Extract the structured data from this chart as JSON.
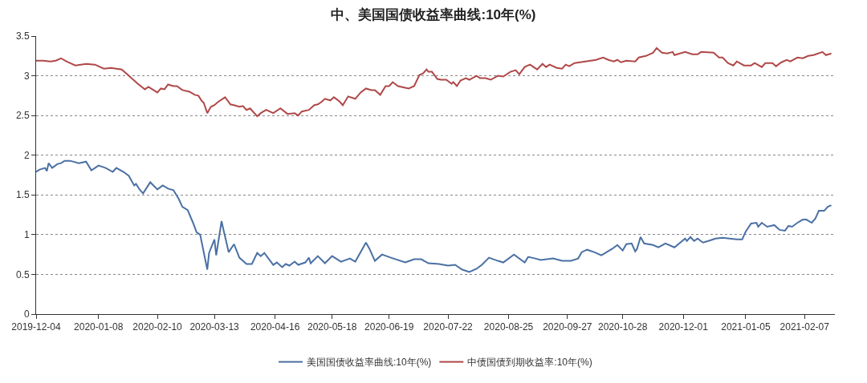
{
  "chart_data": {
    "type": "line",
    "title": "中、美国国债收益率曲线:10年(%)",
    "xlim": [
      "2019-12-04",
      "2021-02-24"
    ],
    "xticks": [
      "2019-12-04",
      "2020-01-08",
      "2020-02-10",
      "2020-03-13",
      "2020-04-16",
      "2020-05-18",
      "2020-06-19",
      "2020-07-22",
      "2020-08-25",
      "2020-09-27",
      "2020-10-28",
      "2020-12-01",
      "2021-01-05",
      "2021-02-07"
    ],
    "ylim": [
      0,
      3.5
    ],
    "yticks": [
      0,
      0.5,
      1,
      1.5,
      2,
      2.5,
      3,
      3.5
    ],
    "grid": "y",
    "legend": "bottom",
    "marker": "none",
    "line_style": "solid",
    "series": [
      {
        "name": "美国国债收益率曲线:10年(%)",
        "color": "#4a70a4",
        "x": [
          "2019-12-04",
          "2019-12-06",
          "2019-12-09",
          "2019-12-10",
          "2019-12-11",
          "2019-12-13",
          "2019-12-16",
          "2019-12-18",
          "2019-12-20",
          "2019-12-23",
          "2019-12-28",
          "2020-01-01",
          "2020-01-04",
          "2020-01-08",
          "2020-01-12",
          "2020-01-16",
          "2020-01-18",
          "2020-01-22",
          "2020-01-25",
          "2020-01-28",
          "2020-01-29",
          "2020-01-31",
          "2020-02-02",
          "2020-02-06",
          "2020-02-10",
          "2020-02-13",
          "2020-02-16",
          "2020-02-19",
          "2020-02-22",
          "2020-02-24",
          "2020-02-27",
          "2020-03-01",
          "2020-03-03",
          "2020-03-05",
          "2020-03-09",
          "2020-03-10",
          "2020-03-13",
          "2020-03-14",
          "2020-03-17",
          "2020-03-18",
          "2020-03-21",
          "2020-03-24",
          "2020-03-27",
          "2020-03-31",
          "2020-04-03",
          "2020-04-06",
          "2020-04-08",
          "2020-04-10",
          "2020-04-15",
          "2020-04-17",
          "2020-04-20",
          "2020-04-22",
          "2020-04-24",
          "2020-04-27",
          "2020-04-29",
          "2020-05-03",
          "2020-05-05",
          "2020-05-06",
          "2020-05-10",
          "2020-05-14",
          "2020-05-18",
          "2020-05-23",
          "2020-05-28",
          "2020-05-31",
          "2020-06-06",
          "2020-06-08",
          "2020-06-11",
          "2020-06-15",
          "2020-06-20",
          "2020-06-28",
          "2020-07-03",
          "2020-07-07",
          "2020-07-11",
          "2020-07-17",
          "2020-07-22",
          "2020-07-26",
          "2020-07-30",
          "2020-08-03",
          "2020-08-07",
          "2020-08-10",
          "2020-08-14",
          "2020-08-19",
          "2020-08-22",
          "2020-08-28",
          "2020-09-03",
          "2020-09-05",
          "2020-09-09",
          "2020-09-12",
          "2020-09-19",
          "2020-09-24",
          "2020-09-29",
          "2020-10-03",
          "2020-10-05",
          "2020-10-08",
          "2020-10-12",
          "2020-10-16",
          "2020-10-22",
          "2020-10-25",
          "2020-10-28",
          "2020-10-30",
          "2020-11-02",
          "2020-11-04",
          "2020-11-05",
          "2020-11-07",
          "2020-11-09",
          "2020-11-14",
          "2020-11-17",
          "2020-11-21",
          "2020-11-26",
          "2020-12-02",
          "2020-12-03",
          "2020-12-05",
          "2020-12-07",
          "2020-12-09",
          "2020-12-12",
          "2020-12-15",
          "2020-12-19",
          "2020-12-23",
          "2020-12-31",
          "2021-01-03",
          "2021-01-05",
          "2021-01-08",
          "2021-01-11",
          "2021-01-12",
          "2021-01-14",
          "2021-01-17",
          "2021-01-21",
          "2021-01-24",
          "2021-01-27",
          "2021-01-29",
          "2021-01-31",
          "2021-02-03",
          "2021-02-06",
          "2021-02-08",
          "2021-02-11",
          "2021-02-13",
          "2021-02-15",
          "2021-02-18",
          "2021-02-20",
          "2021-02-22"
        ],
        "values": [
          1.79,
          1.82,
          1.84,
          1.8,
          1.9,
          1.84,
          1.89,
          1.9,
          1.93,
          1.93,
          1.9,
          1.92,
          1.81,
          1.87,
          1.84,
          1.79,
          1.84,
          1.79,
          1.74,
          1.62,
          1.64,
          1.57,
          1.52,
          1.66,
          1.57,
          1.62,
          1.58,
          1.56,
          1.45,
          1.35,
          1.31,
          1.15,
          1.03,
          1.0,
          0.56,
          0.77,
          0.94,
          0.74,
          1.17,
          1.07,
          0.78,
          0.88,
          0.71,
          0.63,
          0.63,
          0.77,
          0.73,
          0.77,
          0.62,
          0.65,
          0.59,
          0.63,
          0.61,
          0.66,
          0.62,
          0.65,
          0.71,
          0.64,
          0.73,
          0.64,
          0.73,
          0.66,
          0.7,
          0.66,
          0.9,
          0.82,
          0.67,
          0.75,
          0.71,
          0.65,
          0.69,
          0.69,
          0.64,
          0.63,
          0.61,
          0.62,
          0.56,
          0.53,
          0.57,
          0.62,
          0.71,
          0.67,
          0.65,
          0.75,
          0.65,
          0.72,
          0.7,
          0.68,
          0.7,
          0.67,
          0.67,
          0.7,
          0.78,
          0.81,
          0.78,
          0.74,
          0.82,
          0.87,
          0.8,
          0.88,
          0.89,
          0.79,
          0.82,
          0.97,
          0.89,
          0.87,
          0.84,
          0.89,
          0.84,
          0.95,
          0.92,
          0.97,
          0.92,
          0.95,
          0.9,
          0.92,
          0.95,
          0.96,
          0.94,
          0.94,
          1.04,
          1.14,
          1.15,
          1.1,
          1.15,
          1.1,
          1.12,
          1.06,
          1.05,
          1.11,
          1.1,
          1.15,
          1.19,
          1.19,
          1.15,
          1.2,
          1.3,
          1.3,
          1.35,
          1.37
        ]
      },
      {
        "name": "中债国债到期收益率:10年(%)",
        "color": "#b04848",
        "x": [
          "2019-12-04",
          "2019-12-08",
          "2019-12-12",
          "2019-12-15",
          "2019-12-18",
          "2019-12-21",
          "2019-12-26",
          "2019-12-29",
          "2020-01-01",
          "2020-01-06",
          "2020-01-11",
          "2020-01-15",
          "2020-01-21",
          "2020-01-24",
          "2020-01-30",
          "2020-02-03",
          "2020-02-05",
          "2020-02-10",
          "2020-02-12",
          "2020-02-14",
          "2020-02-16",
          "2020-02-19",
          "2020-02-21",
          "2020-02-24",
          "2020-02-28",
          "2020-03-02",
          "2020-03-04",
          "2020-03-06",
          "2020-03-07",
          "2020-03-09",
          "2020-03-11",
          "2020-03-13",
          "2020-03-15",
          "2020-03-19",
          "2020-03-22",
          "2020-03-24",
          "2020-03-27",
          "2020-03-29",
          "2020-03-31",
          "2020-04-02",
          "2020-04-06",
          "2020-04-08",
          "2020-04-11",
          "2020-04-15",
          "2020-04-19",
          "2020-04-23",
          "2020-04-27",
          "2020-04-29",
          "2020-05-01",
          "2020-05-05",
          "2020-05-08",
          "2020-05-10",
          "2020-05-12",
          "2020-05-14",
          "2020-05-17",
          "2020-05-19",
          "2020-05-22",
          "2020-05-24",
          "2020-05-27",
          "2020-05-31",
          "2020-06-03",
          "2020-06-06",
          "2020-06-09",
          "2020-06-11",
          "2020-06-14",
          "2020-06-17",
          "2020-06-19",
          "2020-06-21",
          "2020-06-24",
          "2020-06-28",
          "2020-06-30",
          "2020-07-03",
          "2020-07-06",
          "2020-07-08",
          "2020-07-10",
          "2020-07-11",
          "2020-07-13",
          "2020-07-16",
          "2020-07-18",
          "2020-07-21",
          "2020-07-24",
          "2020-07-25",
          "2020-07-27",
          "2020-07-29",
          "2020-08-01",
          "2020-08-03",
          "2020-08-07",
          "2020-08-09",
          "2020-08-12",
          "2020-08-15",
          "2020-08-19",
          "2020-08-22",
          "2020-08-26",
          "2020-08-29",
          "2020-08-31",
          "2020-09-03",
          "2020-09-06",
          "2020-09-10",
          "2020-09-13",
          "2020-09-15",
          "2020-09-17",
          "2020-09-21",
          "2020-09-24",
          "2020-09-26",
          "2020-09-28",
          "2020-10-01",
          "2020-10-07",
          "2020-10-13",
          "2020-10-17",
          "2020-10-20",
          "2020-10-23",
          "2020-10-25",
          "2020-10-27",
          "2020-10-30",
          "2020-11-04",
          "2020-11-06",
          "2020-11-10",
          "2020-11-14",
          "2020-11-16",
          "2020-11-19",
          "2020-11-22",
          "2020-11-25",
          "2020-11-26",
          "2020-12-02",
          "2020-12-06",
          "2020-12-09",
          "2020-12-11",
          "2020-12-18",
          "2020-12-21",
          "2020-12-23",
          "2020-12-26",
          "2020-12-29",
          "2020-12-31",
          "2021-01-04",
          "2021-01-08",
          "2021-01-10",
          "2021-01-14",
          "2021-01-16",
          "2021-01-20",
          "2021-01-22",
          "2021-01-25",
          "2021-01-28",
          "2021-01-30",
          "2021-02-03",
          "2021-02-06",
          "2021-02-09",
          "2021-02-12",
          "2021-02-17",
          "2021-02-19",
          "2021-02-22"
        ],
        "values": [
          3.19,
          3.19,
          3.18,
          3.19,
          3.22,
          3.18,
          3.13,
          3.14,
          3.15,
          3.14,
          3.09,
          3.1,
          3.08,
          3.02,
          2.9,
          2.83,
          2.86,
          2.79,
          2.84,
          2.83,
          2.89,
          2.87,
          2.87,
          2.82,
          2.8,
          2.76,
          2.75,
          2.68,
          2.66,
          2.53,
          2.61,
          2.63,
          2.67,
          2.73,
          2.64,
          2.63,
          2.61,
          2.62,
          2.57,
          2.59,
          2.49,
          2.53,
          2.57,
          2.53,
          2.59,
          2.52,
          2.53,
          2.5,
          2.55,
          2.57,
          2.63,
          2.64,
          2.67,
          2.71,
          2.69,
          2.73,
          2.68,
          2.63,
          2.74,
          2.71,
          2.79,
          2.84,
          2.82,
          2.82,
          2.76,
          2.87,
          2.87,
          2.92,
          2.87,
          2.85,
          2.84,
          2.87,
          3.01,
          3.03,
          3.08,
          3.05,
          3.05,
          2.96,
          2.95,
          2.95,
          2.9,
          2.92,
          2.87,
          2.94,
          2.97,
          2.95,
          3.0,
          2.97,
          2.97,
          2.95,
          3.0,
          2.99,
          3.05,
          3.07,
          3.02,
          3.11,
          3.14,
          3.08,
          3.15,
          3.11,
          3.14,
          3.1,
          3.09,
          3.14,
          3.12,
          3.16,
          3.18,
          3.2,
          3.23,
          3.2,
          3.18,
          3.2,
          3.17,
          3.19,
          3.18,
          3.23,
          3.25,
          3.29,
          3.35,
          3.29,
          3.28,
          3.3,
          3.26,
          3.3,
          3.27,
          3.27,
          3.3,
          3.29,
          3.23,
          3.23,
          3.16,
          3.13,
          3.18,
          3.13,
          3.13,
          3.16,
          3.11,
          3.16,
          3.16,
          3.12,
          3.17,
          3.2,
          3.18,
          3.23,
          3.22,
          3.25,
          3.26,
          3.3,
          3.26,
          3.28
        ]
      }
    ]
  }
}
